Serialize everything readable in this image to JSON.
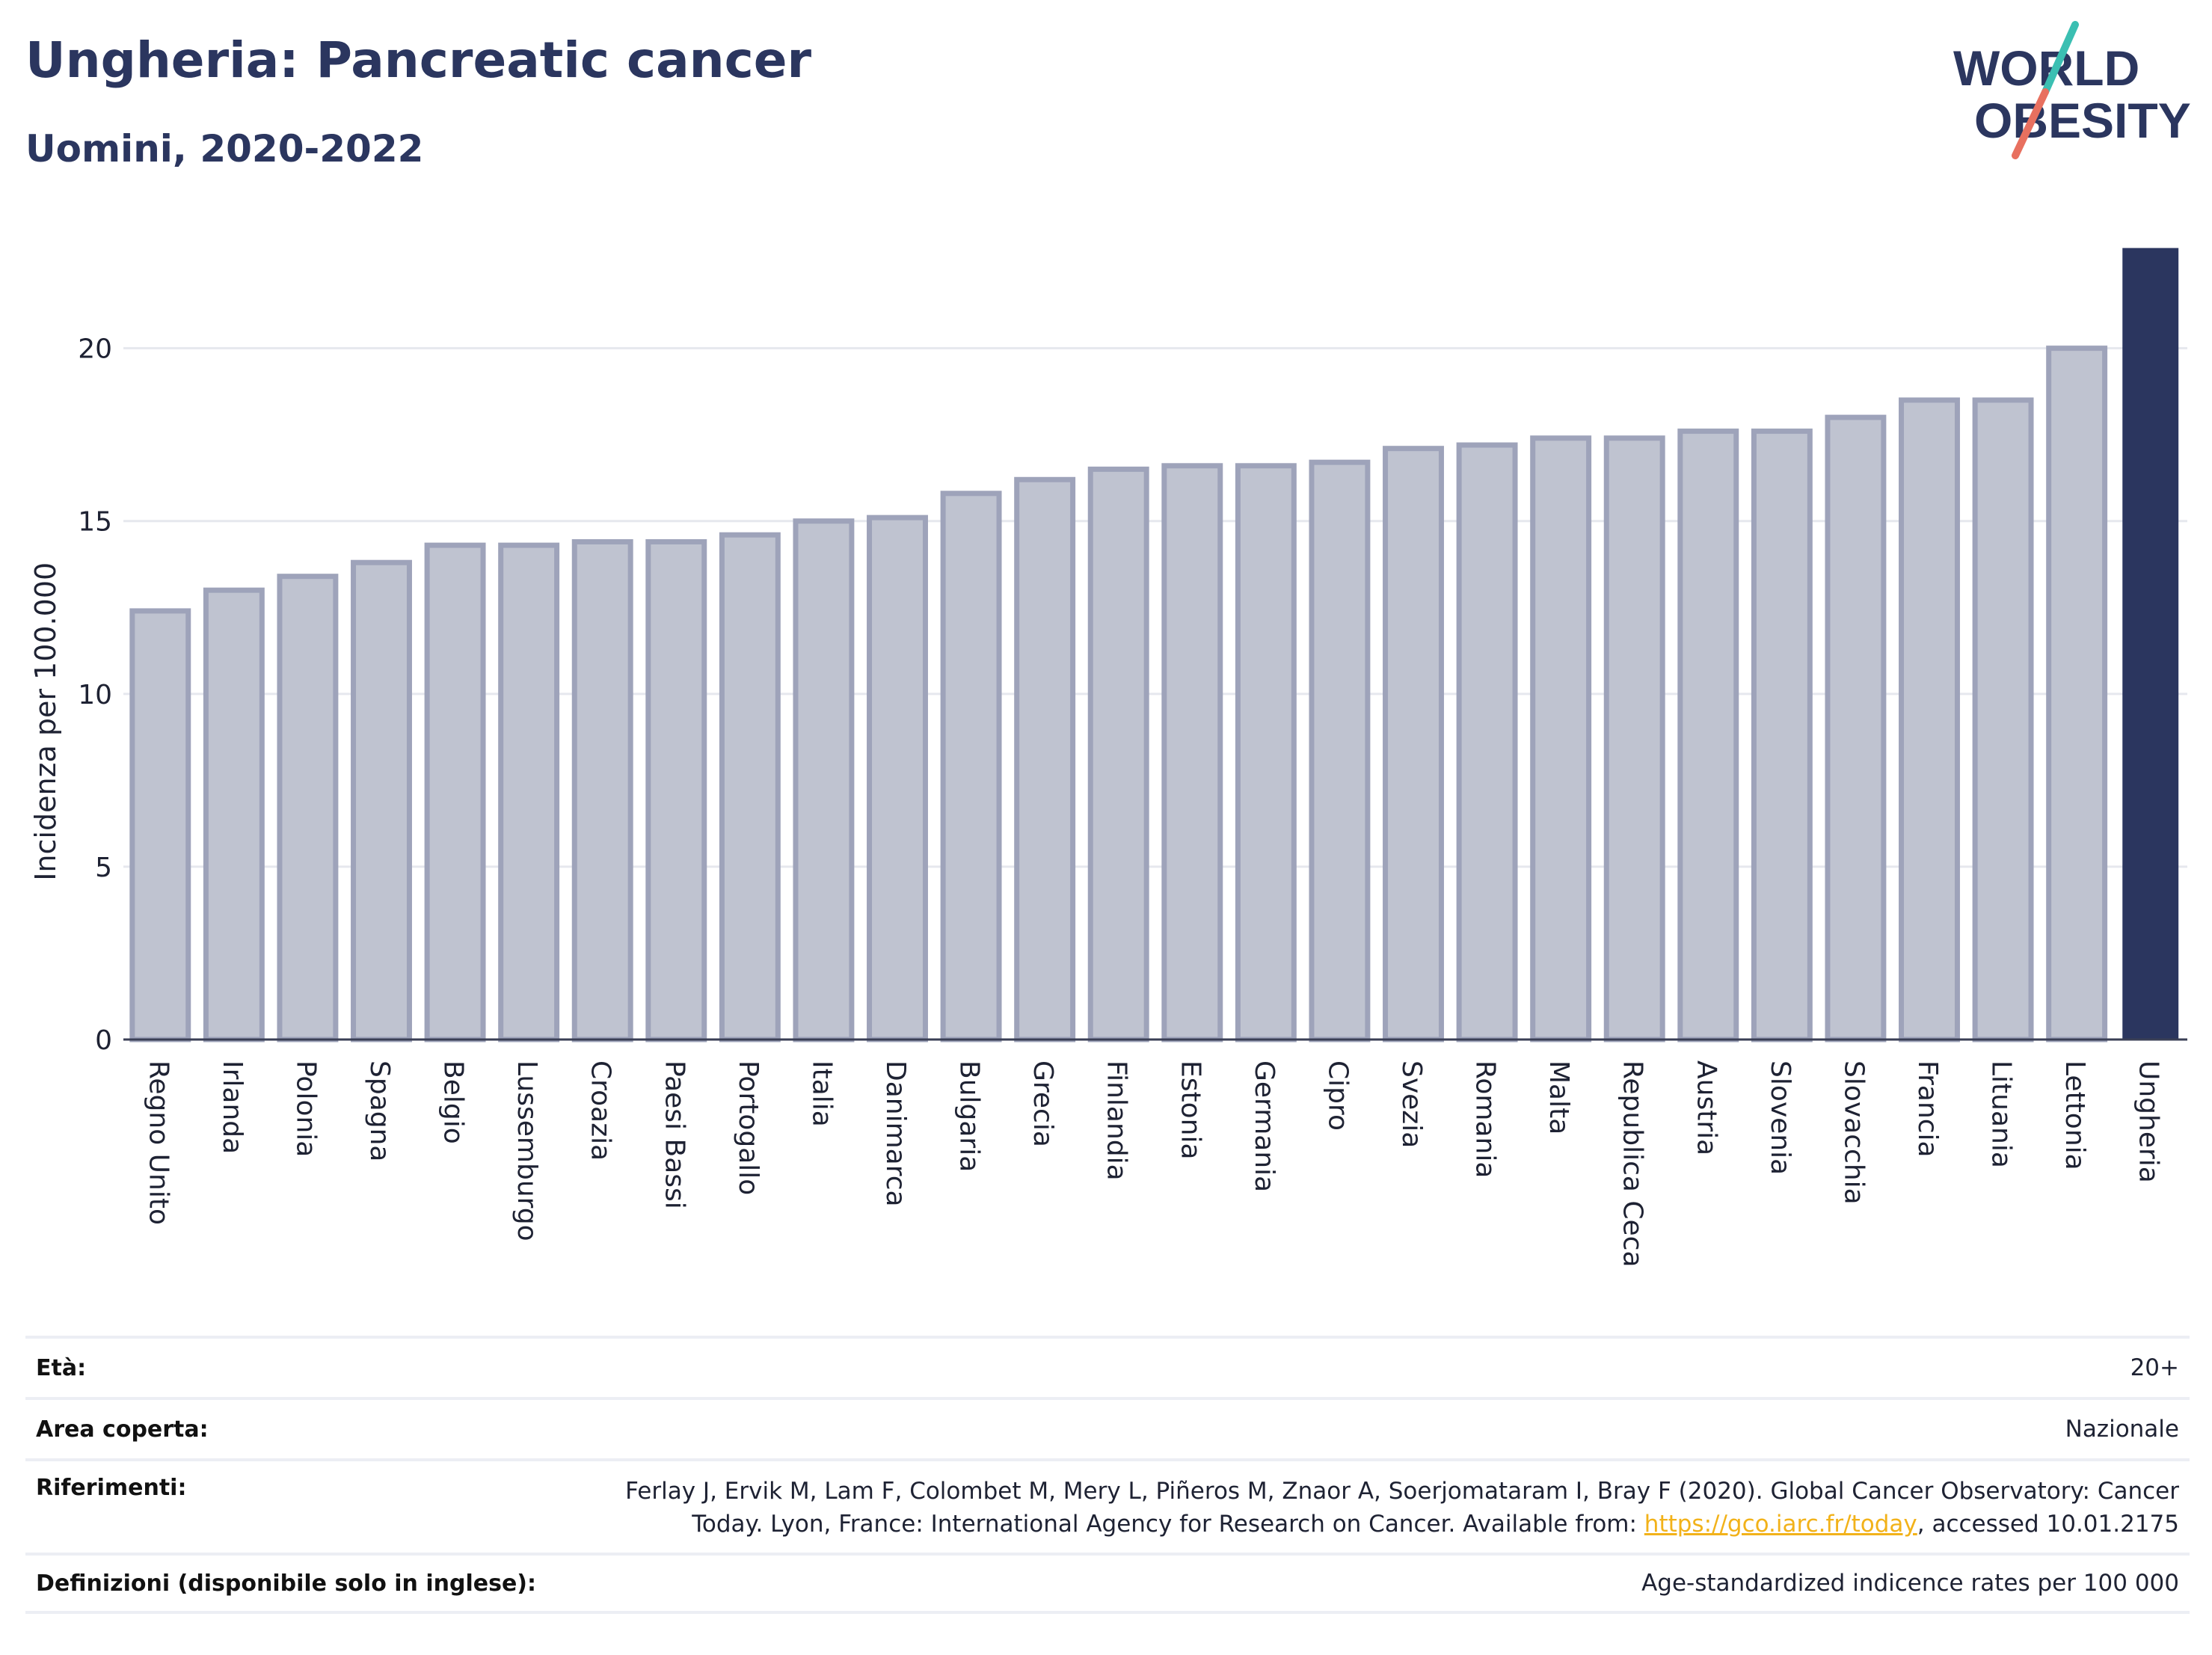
{
  "header": {
    "title": "Ungheria: Pancreatic cancer",
    "subtitle": "Uomini, 2020-2022"
  },
  "logo": {
    "line1": "WORLD",
    "line2": "OBESITY",
    "icon": "world-obesity-logo"
  },
  "colors": {
    "highlight": "#2b365f",
    "bar_fill": "#bfc3d0",
    "bar_stroke": "#9ea3ba",
    "text": "#2b365f",
    "link": "#f2b21a"
  },
  "chart_data": {
    "type": "bar",
    "ylabel": "Incidenza per 100.000",
    "xlabel": "",
    "ylim": [
      0,
      23
    ],
    "yticks": [
      0,
      5,
      10,
      15,
      20
    ],
    "grid": true,
    "categories": [
      "Regno Unito",
      "Irlanda",
      "Polonia",
      "Spagna",
      "Belgio",
      "Lussemburgo",
      "Croazia",
      "Paesi Bassi",
      "Portogallo",
      "Italia",
      "Danimarca",
      "Bulgaria",
      "Grecia",
      "Finlandia",
      "Estonia",
      "Germania",
      "Cipro",
      "Svezia",
      "Romania",
      "Malta",
      "Republica Ceca",
      "Austria",
      "Slovenia",
      "Slovacchia",
      "Francia",
      "Lituania",
      "Lettonia",
      "Ungheria"
    ],
    "values": [
      12.4,
      13.0,
      13.4,
      13.8,
      14.3,
      14.3,
      14.4,
      14.4,
      14.6,
      15.0,
      15.1,
      15.8,
      16.2,
      16.5,
      16.6,
      16.6,
      16.7,
      17.1,
      17.2,
      17.4,
      17.4,
      17.6,
      17.6,
      18.0,
      18.5,
      18.5,
      20.0,
      22.9
    ],
    "highlight": "Ungheria"
  },
  "info": {
    "rows": [
      {
        "label": "Età:",
        "value": "20+"
      },
      {
        "label": "Area coperta:",
        "value": "Nazionale"
      },
      {
        "label": "Riferimenti:",
        "value_line1": "Ferlay J, Ervik M, Lam F, Colombet M, Mery L, Piñeros M, Znaor A, Soerjomataram I, Bray F (2020). Global Cancer Observatory: Cancer",
        "value_line2_pre": "Today. Lyon, France: International Agency for Research on Cancer. Available from: ",
        "link": "https://gco.iarc.fr/today",
        "value_line2_post": ", accessed 10.01.2175"
      },
      {
        "label": "Definizioni (disponibile solo in inglese):",
        "value": "Age-standardized indicence rates per 100 000"
      }
    ]
  }
}
